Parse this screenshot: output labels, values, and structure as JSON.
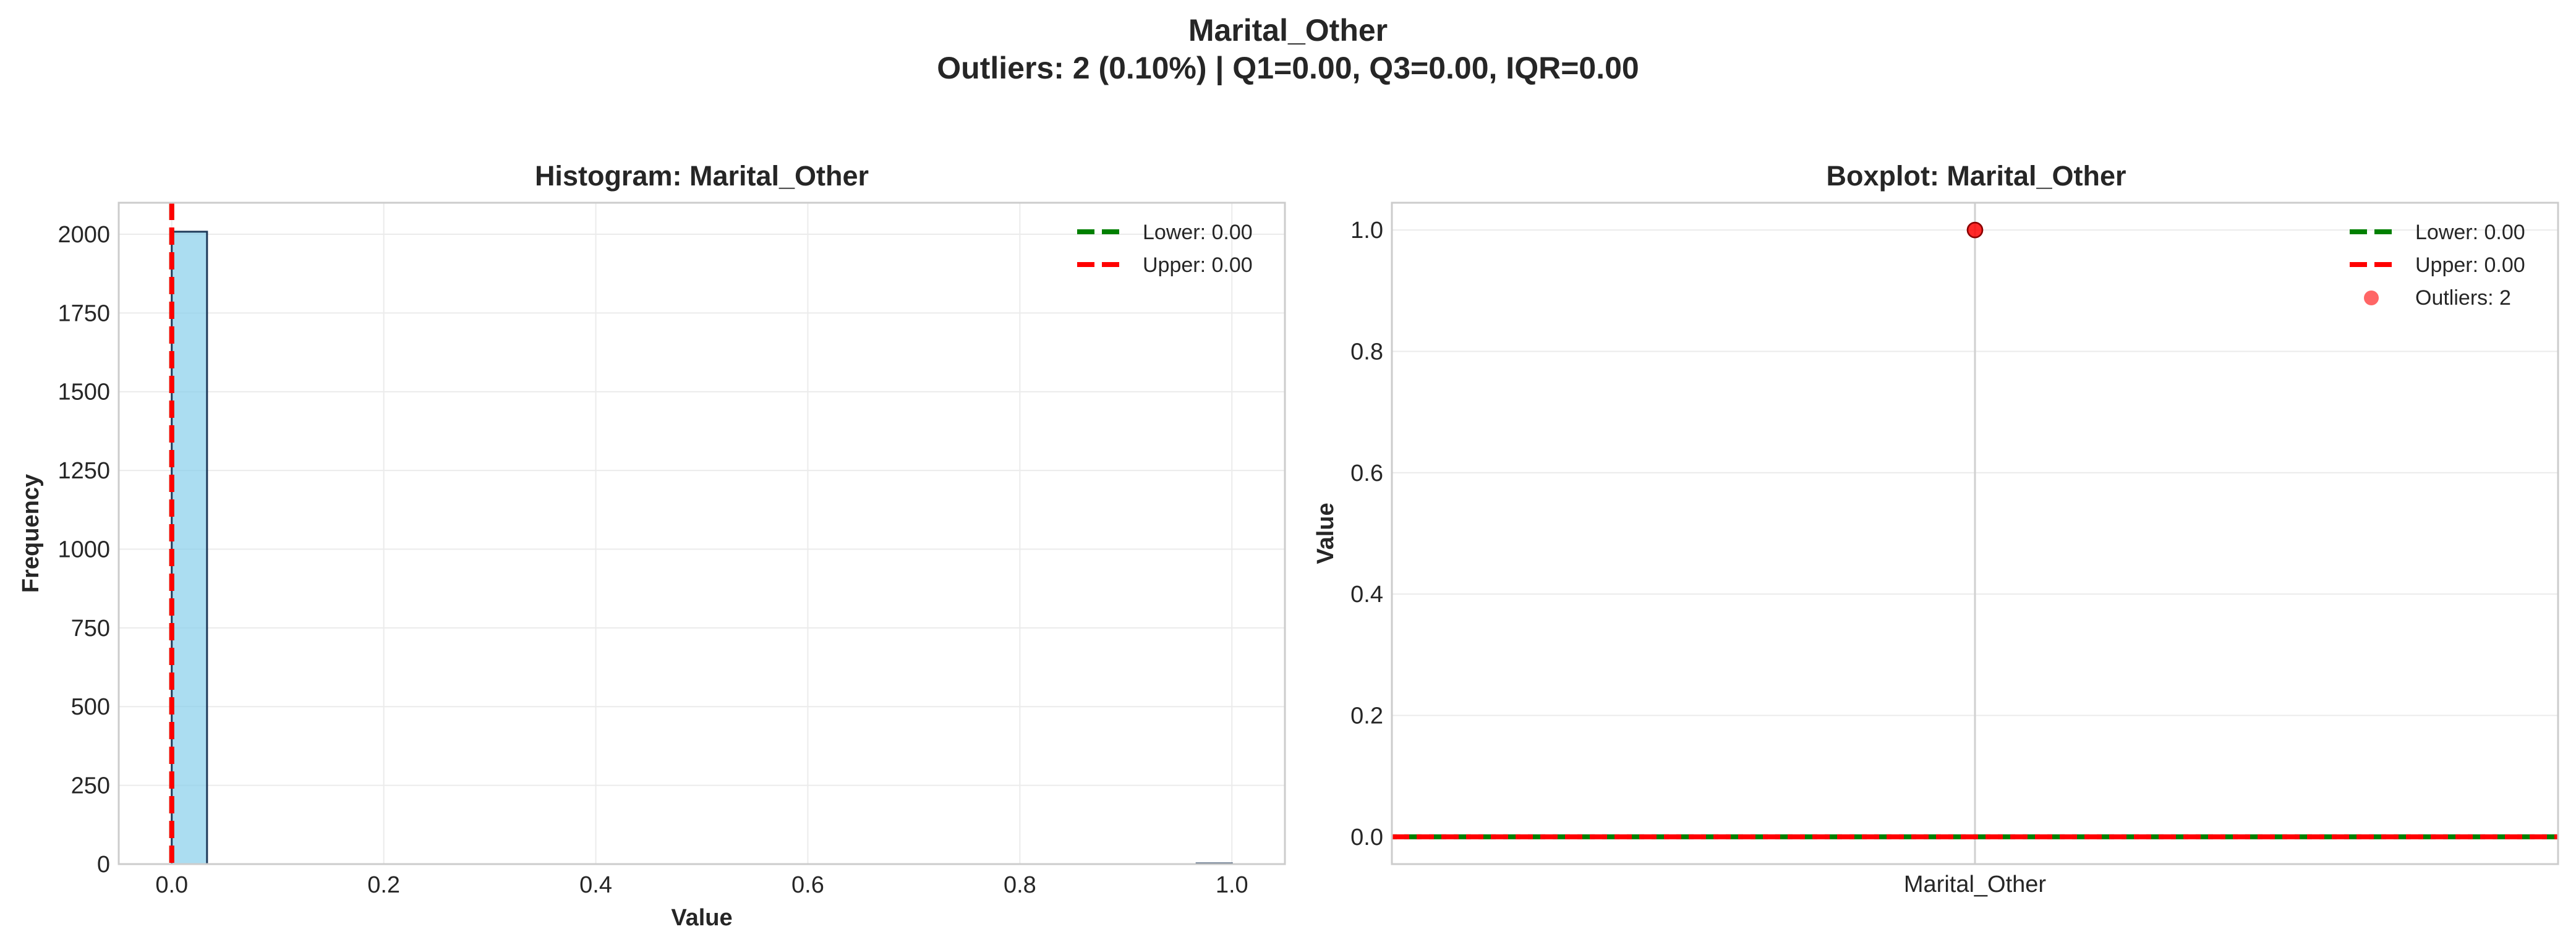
{
  "suptitle": {
    "line1": "Marital_Other",
    "line2": "Outliers: 2 (0.10%) | Q1=0.00, Q3=0.00, IQR=0.00"
  },
  "chart_data": [
    {
      "type": "bar",
      "subtype": "histogram",
      "title": "Histogram: Marital_Other",
      "xlabel": "Value",
      "ylabel": "Frequency",
      "xlim": [
        -0.05,
        1.05
      ],
      "ylim": [
        0,
        2100
      ],
      "xticks": [
        0.0,
        0.2,
        0.4,
        0.6,
        0.8,
        1.0
      ],
      "xtick_labels": [
        "0.0",
        "0.2",
        "0.4",
        "0.6",
        "0.8",
        "1.0"
      ],
      "yticks": [
        0,
        250,
        500,
        750,
        1000,
        1250,
        1500,
        1750,
        2000
      ],
      "ytick_labels": [
        "0",
        "250",
        "500",
        "750",
        "1000",
        "1250",
        "1500",
        "1750",
        "2000"
      ],
      "bins": [
        {
          "x0": 0.0,
          "x1": 0.0333,
          "count": 2008
        },
        {
          "x0": 0.9667,
          "x1": 1.0,
          "count": 2
        }
      ],
      "bar_color": "#87ceeb",
      "bar_edge": "#1f3a5a",
      "grid": true,
      "legend_position": "top-right",
      "lines": [
        {
          "name": "Lower: 0.00",
          "value": 0.0,
          "color": "#008000",
          "style": "dashed"
        },
        {
          "name": "Upper: 0.00",
          "value": 0.0,
          "color": "#ff0000",
          "style": "dashed"
        }
      ]
    },
    {
      "type": "scatter",
      "subtype": "boxplot",
      "title": "Boxplot: Marital_Other",
      "xlabel": "",
      "ylabel": "Value",
      "category": "Marital_Other",
      "ylim": [
        -0.045,
        1.045
      ],
      "yticks": [
        0.0,
        0.2,
        0.4,
        0.6,
        0.8,
        1.0
      ],
      "ytick_labels": [
        "0.0",
        "0.2",
        "0.4",
        "0.6",
        "0.8",
        "1.0"
      ],
      "box": {
        "q1": 0.0,
        "median": 0.0,
        "q3": 0.0,
        "whisker_low": 0.0,
        "whisker_high": 0.0
      },
      "median_color": "#ff7f0e",
      "grid": true,
      "legend_position": "top-right",
      "lines": [
        {
          "name": "Lower: 0.00",
          "value": 0.0,
          "color": "#008000",
          "style": "dashed"
        },
        {
          "name": "Upper: 0.00",
          "value": 0.0,
          "color": "#ff0000",
          "style": "dashed"
        }
      ],
      "outliers": {
        "name": "Outliers: 2",
        "values": [
          1.0,
          1.0
        ],
        "color": "#ff0000"
      }
    }
  ]
}
